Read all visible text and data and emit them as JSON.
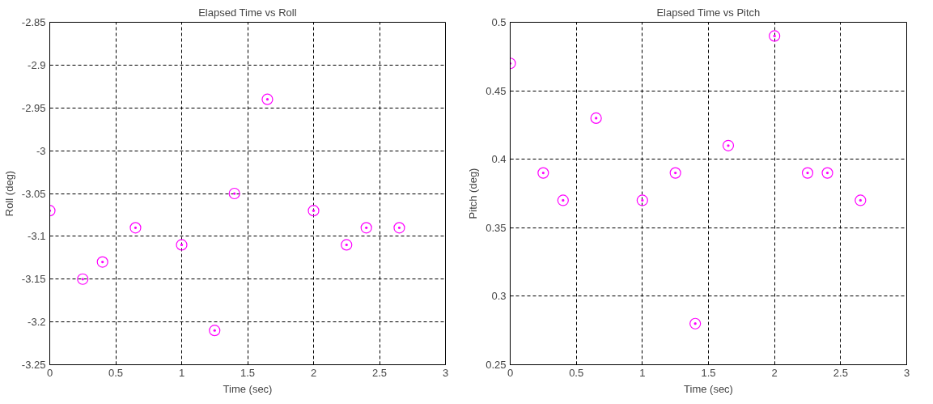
{
  "chart_data": [
    {
      "type": "scatter",
      "title": "Elapsed Time vs Roll",
      "xlabel": "Time (sec)",
      "ylabel": "Roll (deg)",
      "x": [
        0,
        0.25,
        0.4,
        0.65,
        1,
        1.25,
        1.4,
        1.65,
        2,
        2.25,
        2.4,
        2.65
      ],
      "series": [
        {
          "color": "#ff00ff",
          "values": [
            -3.07,
            -3.15,
            -3.13,
            -3.09,
            -3.11,
            -3.21,
            -3.05,
            -2.94,
            -3.07,
            -3.11,
            -3.09,
            -3.09
          ]
        }
      ],
      "xlim": [
        0,
        3
      ],
      "xticks": [
        0,
        0.5,
        1,
        1.5,
        2,
        2.5,
        3
      ],
      "ylim": [
        -3.25,
        -2.85
      ],
      "yticks": [
        -3.25,
        -3.2,
        -3.15,
        -3.1,
        -3.05,
        -3,
        -2.95,
        -2.9,
        -2.85
      ],
      "grid": true,
      "marker": "circle"
    },
    {
      "type": "scatter",
      "title": "Elapsed Time vs Pitch",
      "xlabel": "Time (sec)",
      "ylabel": "Pitch (deg)",
      "x": [
        0,
        0.25,
        0.4,
        0.65,
        1,
        1.25,
        1.4,
        1.65,
        2,
        2.25,
        2.4,
        2.65
      ],
      "series": [
        {
          "color": "#ff00ff",
          "values": [
            0.47,
            0.39,
            0.37,
            0.43,
            0.37,
            0.39,
            0.28,
            0.41,
            0.49,
            0.39,
            0.39,
            0.37
          ]
        }
      ],
      "xlim": [
        0,
        3
      ],
      "xticks": [
        0,
        0.5,
        1,
        1.5,
        2,
        2.5,
        3
      ],
      "ylim": [
        0.25,
        0.5
      ],
      "yticks": [
        0.25,
        0.3,
        0.35,
        0.4,
        0.45,
        0.5
      ],
      "grid": true,
      "marker": "circle"
    }
  ]
}
